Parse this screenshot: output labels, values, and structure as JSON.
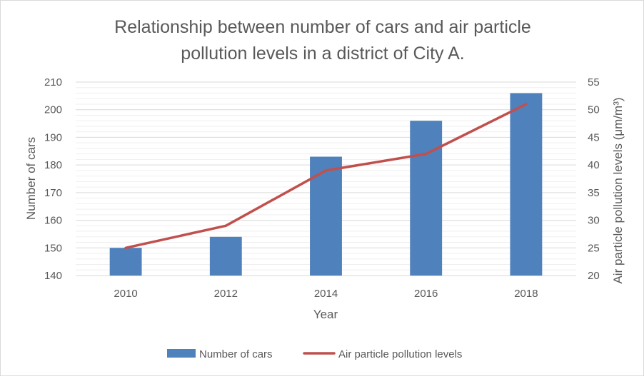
{
  "chart_data": {
    "type": "bar",
    "title": "Relationship between number of cars and air particle pollution levels in a district of City A.",
    "title_lines": [
      "Relationship between number of cars and air particle",
      "pollution levels in a district of City A."
    ],
    "xlabel": "Year",
    "ylabel_left": "Number of cars",
    "ylabel_right": "Air particle pollution levels (μm/m³)",
    "categories": [
      "2010",
      "2012",
      "2014",
      "2016",
      "2018"
    ],
    "y_left_lim": [
      140,
      210
    ],
    "y_left_ticks": [
      140,
      150,
      160,
      170,
      180,
      190,
      200,
      210
    ],
    "y_right_lim": [
      20,
      55
    ],
    "y_right_ticks": [
      20,
      25,
      30,
      35,
      40,
      45,
      50,
      55
    ],
    "grid": true,
    "legend_position": "bottom",
    "series": [
      {
        "name": "Number of cars",
        "type": "bar",
        "axis": "left",
        "color": "#4f81bd",
        "values": [
          150,
          154,
          183,
          196,
          206
        ]
      },
      {
        "name": "Air particle pollution levels",
        "type": "line",
        "axis": "right",
        "color": "#c0504d",
        "values": [
          25,
          29,
          39,
          42,
          51
        ]
      }
    ]
  }
}
